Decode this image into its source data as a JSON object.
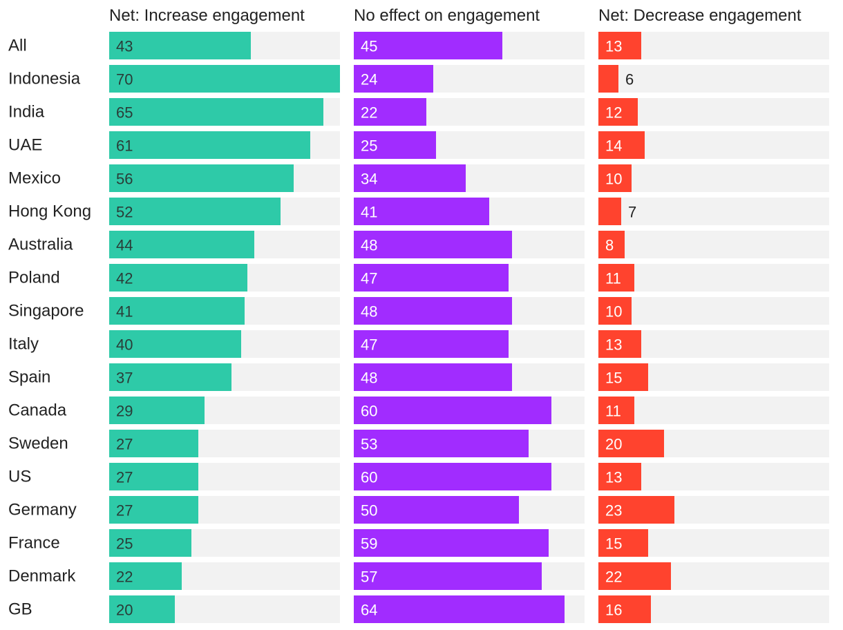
{
  "chart_data": {
    "type": "bar",
    "orientation": "horizontal",
    "layout": "small-multiples",
    "categories": [
      "All",
      "Indonesia",
      "India",
      "UAE",
      "Mexico",
      "Hong Kong",
      "Australia",
      "Poland",
      "Singapore",
      "Italy",
      "Spain",
      "Canada",
      "Sweden",
      "US",
      "Germany",
      "France",
      "Denmark",
      "GB"
    ],
    "series": [
      {
        "name": "Net: Increase engagement",
        "color": "#2ecaa8",
        "label_color": "#2a3d38",
        "values": [
          43,
          70,
          65,
          61,
          56,
          52,
          44,
          42,
          41,
          40,
          37,
          29,
          27,
          27,
          27,
          25,
          22,
          20
        ]
      },
      {
        "name": "No effect on engagement",
        "color": "#a12cff",
        "label_color": "#ffffff",
        "values": [
          45,
          24,
          22,
          25,
          34,
          41,
          48,
          47,
          48,
          47,
          48,
          60,
          53,
          60,
          50,
          59,
          57,
          64
        ]
      },
      {
        "name": "Net: Decrease engagement",
        "color": "#ff432e",
        "label_color": "#ffffff",
        "values": [
          13,
          6,
          12,
          14,
          10,
          7,
          8,
          11,
          10,
          13,
          15,
          11,
          20,
          13,
          23,
          15,
          22,
          16
        ]
      }
    ],
    "xlim": [
      0,
      70
    ],
    "track_color": "#f2f2f2",
    "grid": false,
    "legend": "column headers"
  }
}
